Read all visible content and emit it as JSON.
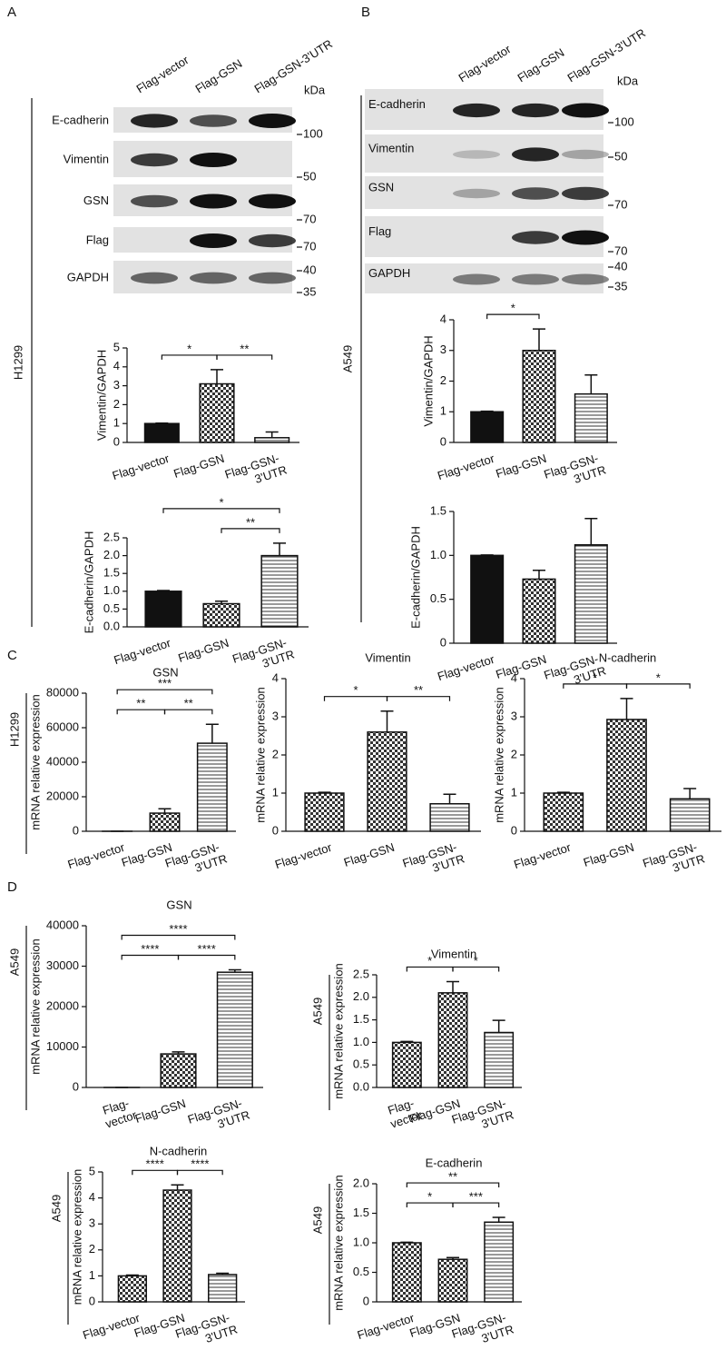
{
  "panel_labels": [
    "A",
    "B",
    "C",
    "D"
  ],
  "blots": [
    {
      "cell_line": "H1299",
      "lanes": [
        "Flag-vector",
        "Flag-GSN",
        "Flag-GSN-3'UTR"
      ],
      "unit": "kDa",
      "rows": [
        {
          "label": "E-cadherin",
          "markers": [
            100
          ]
        },
        {
          "label": "Vimentin",
          "markers": [
            50
          ]
        },
        {
          "label": "GSN",
          "markers": [
            70
          ]
        },
        {
          "label": "Flag",
          "markers": [
            70
          ]
        },
        {
          "label": "GAPDH",
          "markers": [
            40,
            35
          ]
        }
      ]
    },
    {
      "cell_line": "A549",
      "lanes": [
        "Flag-vector",
        "Flag-GSN",
        "Flag-GSN-3'UTR"
      ],
      "unit": "kDa",
      "rows": [
        {
          "label": "E-cadherin",
          "markers": [
            100
          ]
        },
        {
          "label": "Vimentin",
          "markers": [
            50
          ]
        },
        {
          "label": "GSN",
          "markers": [
            70
          ]
        },
        {
          "label": "Flag",
          "markers": [
            70
          ]
        },
        {
          "label": "GAPDH",
          "markers": [
            40,
            35
          ]
        }
      ]
    }
  ],
  "chart_data": [
    {
      "type": "bar",
      "ylabel": "Vimentin/GAPDH",
      "categories": [
        "Flag-vector",
        "Flag-GSN",
        [
          "Flag-GSN-",
          "3'UTR"
        ]
      ],
      "values": [
        1.0,
        3.1,
        0.25
      ],
      "errors": [
        0.02,
        0.75,
        0.3
      ],
      "fills": [
        "solid",
        "check",
        "hstripe"
      ],
      "ylim": [
        0,
        5
      ],
      "yticks": [
        0,
        1,
        2,
        3,
        4,
        5
      ],
      "significance": [
        {
          "label": "*",
          "span": [
            0,
            1
          ]
        },
        {
          "label": "**",
          "span": [
            1,
            2
          ]
        }
      ]
    },
    {
      "type": "bar",
      "ylabel": "E-cadherin/GAPDH",
      "categories": [
        "Flag-vector",
        "Flag-GSN",
        [
          "Flag-GSN-",
          "3'UTR"
        ]
      ],
      "values": [
        1.0,
        0.65,
        2.0
      ],
      "errors": [
        0.02,
        0.07,
        0.35
      ],
      "fills": [
        "solid",
        "check",
        "hstripe"
      ],
      "ylim": [
        0,
        2.5
      ],
      "yticks": [
        {
          "value": 0,
          "label": "0.0"
        },
        0.5,
        {
          "value": 1,
          "label": "1.0"
        },
        1.5,
        {
          "value": 2,
          "label": "2.0"
        },
        2.5
      ],
      "significance": [
        {
          "label": "*",
          "span": [
            0,
            2
          ]
        },
        {
          "label": "**",
          "span": [
            1,
            2
          ]
        }
      ]
    },
    {
      "type": "bar",
      "ylabel": "Vimentin/GAPDH",
      "categories": [
        "Flag-vector",
        "Flag-GSN",
        [
          "Flag-GSN-",
          "3'UTR"
        ]
      ],
      "values": [
        1.0,
        3.0,
        1.58
      ],
      "errors": [
        0.02,
        0.7,
        0.62
      ],
      "fills": [
        "solid",
        "check",
        "hstripe"
      ],
      "ylim": [
        0,
        4
      ],
      "yticks": [
        0,
        1,
        2,
        3,
        4
      ],
      "significance": [
        {
          "label": "*",
          "span": [
            0,
            1
          ]
        }
      ]
    },
    {
      "type": "bar",
      "ylabel": "E-cadherin/GAPDH",
      "categories": [
        "Flag-vector",
        "Flag-GSN",
        [
          "Flag-GSN-",
          "3'UTR"
        ]
      ],
      "values": [
        1.0,
        0.73,
        1.12
      ],
      "errors": [
        0.005,
        0.1,
        0.3
      ],
      "fills": [
        "solid",
        "check",
        "hstripe"
      ],
      "ylim": [
        0,
        1.5
      ],
      "yticks": [
        0,
        0.5,
        {
          "value": 1,
          "label": "1.0"
        },
        1.5
      ],
      "significance": []
    },
    {
      "type": "bar",
      "title": "GSN",
      "side_label": "H1299",
      "ylabel": "mRNA relative expression",
      "categories": [
        "Flag-vector",
        "Flag-GSN",
        [
          "Flag-GSN-",
          "3'UTR"
        ]
      ],
      "values": [
        1,
        10500,
        51000
      ],
      "errors": [
        0,
        2500,
        11000
      ],
      "fills": [
        "check",
        "check",
        "hstripe"
      ],
      "ylim": [
        0,
        80000
      ],
      "yticks": [
        0,
        20000,
        40000,
        60000,
        80000
      ],
      "significance": [
        {
          "label": "***",
          "span": [
            0,
            2
          ]
        },
        {
          "label": "**",
          "span": [
            0,
            1
          ]
        },
        {
          "label": "**",
          "span": [
            1,
            2
          ]
        }
      ]
    },
    {
      "type": "bar",
      "title": "Vimentin",
      "ylabel": "mRNA relative expression",
      "categories": [
        "Flag-vector",
        "Flag-GSN",
        [
          "Flag-GSN-",
          "3'UTR"
        ]
      ],
      "values": [
        1.0,
        2.6,
        0.72
      ],
      "errors": [
        0.02,
        0.55,
        0.25
      ],
      "fills": [
        "check",
        "check",
        "hstripe"
      ],
      "ylim": [
        0,
        4
      ],
      "yticks": [
        0,
        1,
        2,
        3,
        4
      ],
      "significance": [
        {
          "label": "*",
          "span": [
            0,
            1
          ]
        },
        {
          "label": "**",
          "span": [
            1,
            2
          ]
        }
      ]
    },
    {
      "type": "bar",
      "title": "N-cadherin",
      "ylabel": "mRNA relative expression",
      "categories": [
        "Flag-vector",
        "Flag-GSN",
        [
          "Flag-GSN-",
          "3'UTR"
        ]
      ],
      "values": [
        1.0,
        2.93,
        0.85
      ],
      "errors": [
        0.02,
        0.55,
        0.27
      ],
      "fills": [
        "check",
        "check",
        "hstripe"
      ],
      "ylim": [
        0,
        4
      ],
      "yticks": [
        0,
        1,
        2,
        3,
        4
      ],
      "significance": [
        {
          "label": "*",
          "span": [
            0,
            1
          ]
        },
        {
          "label": "*",
          "span": [
            1,
            2
          ]
        }
      ]
    },
    {
      "type": "bar",
      "title": "GSN",
      "side_label": "A549",
      "ylabel": "mRNA relative expression",
      "categories": [
        [
          "Flag-",
          "vector"
        ],
        "Flag-GSN",
        [
          "Flag-GSN-",
          "3'UTR"
        ]
      ],
      "values": [
        1,
        8300,
        28500
      ],
      "errors": [
        0,
        500,
        600
      ],
      "fills": [
        "check",
        "check",
        "hstripe"
      ],
      "ylim": [
        0,
        40000
      ],
      "yticks": [
        0,
        10000,
        20000,
        30000,
        40000
      ],
      "significance": [
        {
          "label": "****",
          "span": [
            0,
            2
          ]
        },
        {
          "label": "****",
          "span": [
            0,
            1
          ]
        },
        {
          "label": "****",
          "span": [
            1,
            2
          ]
        }
      ]
    },
    {
      "type": "bar",
      "title": "Vimentin",
      "side_label": "A549",
      "ylabel": "mRNA relative expression",
      "categories": [
        [
          "Flag-",
          "vector"
        ],
        "Flag-GSN",
        [
          "Flag-GSN-",
          "3'UTR"
        ]
      ],
      "values": [
        1.0,
        2.1,
        1.22
      ],
      "errors": [
        0.02,
        0.25,
        0.27
      ],
      "fills": [
        "check",
        "check",
        "hstripe"
      ],
      "ylim": [
        0,
        2.5
      ],
      "yticks": [
        {
          "value": 0,
          "label": "0.0"
        },
        0.5,
        {
          "value": 1,
          "label": "1.0"
        },
        1.5,
        {
          "value": 2,
          "label": "2.0"
        },
        2.5
      ],
      "significance": [
        {
          "label": "*",
          "span": [
            0,
            1
          ]
        },
        {
          "label": "*",
          "span": [
            1,
            2
          ]
        }
      ]
    },
    {
      "type": "bar",
      "title": "N-cadherin",
      "side_label": "A549",
      "ylabel": "mRNA relative expression",
      "categories": [
        "Flag-vector",
        "Flag-GSN",
        [
          "Flag-GSN-",
          "3'UTR"
        ]
      ],
      "values": [
        1.0,
        4.3,
        1.05
      ],
      "errors": [
        0.03,
        0.2,
        0.05
      ],
      "fills": [
        "check",
        "check",
        "hstripe"
      ],
      "ylim": [
        0,
        5
      ],
      "yticks": [
        0,
        1,
        2,
        3,
        4,
        5
      ],
      "significance": [
        {
          "label": "****",
          "span": [
            0,
            1
          ]
        },
        {
          "label": "****",
          "span": [
            1,
            2
          ]
        }
      ]
    },
    {
      "type": "bar",
      "title": "E-cadherin",
      "side_label": "A549",
      "ylabel": "mRNA relative expression",
      "categories": [
        "Flag-vector",
        "Flag-GSN",
        [
          "Flag-GSN-",
          "3'UTR"
        ]
      ],
      "values": [
        1.0,
        0.72,
        1.35
      ],
      "errors": [
        0.01,
        0.03,
        0.08
      ],
      "fills": [
        "check",
        "check",
        "hstripe"
      ],
      "ylim": [
        0,
        2
      ],
      "yticks": [
        0,
        0.5,
        {
          "value": 1,
          "label": "1.0"
        },
        1.5,
        {
          "value": 2,
          "label": "2.0"
        }
      ],
      "significance": [
        {
          "label": "**",
          "span": [
            0,
            2
          ]
        },
        {
          "label": "*",
          "span": [
            0,
            1
          ]
        },
        {
          "label": "***",
          "span": [
            1,
            2
          ]
        }
      ]
    }
  ]
}
